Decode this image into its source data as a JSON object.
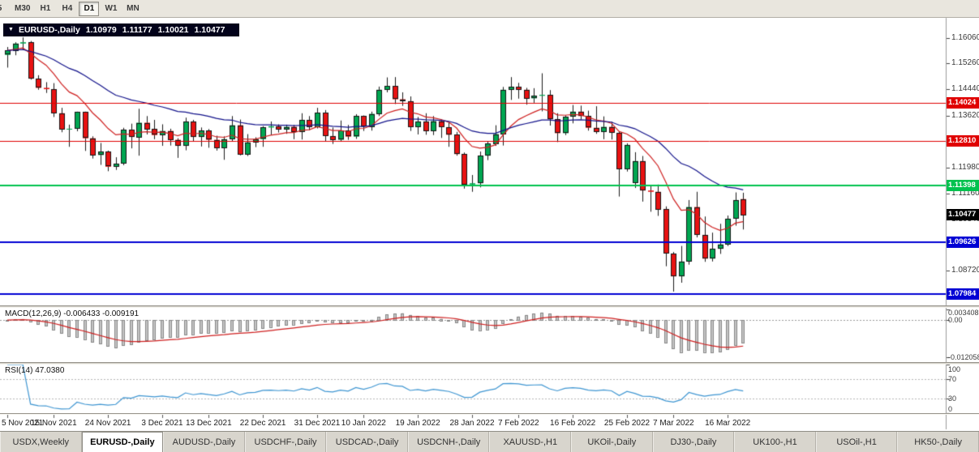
{
  "toolbar": {
    "timeframe_buttons": [
      "5",
      "M30",
      "H1",
      "H4",
      "D1",
      "W1",
      "MN"
    ],
    "active_timeframe": "D1"
  },
  "chart_header": {
    "symbol": "EURUSD-,Daily",
    "open": "1.10979",
    "high": "1.11177",
    "low": "1.10021",
    "close": "1.10477"
  },
  "price_axis": {
    "min": 1.0765,
    "max": 1.1665,
    "ticks": [
      1.1606,
      1.1526,
      1.1444,
      1.1362,
      1.128,
      1.1198,
      1.1116,
      1.1034,
      1.0954,
      1.0872,
      1.079
    ]
  },
  "levels": [
    {
      "price": 1.14024,
      "label": "1.14024",
      "color": "#e00000",
      "width": 1
    },
    {
      "price": 1.1281,
      "label": "1.12810",
      "color": "#e00000",
      "width": 1
    },
    {
      "price": 1.11398,
      "label": "1.11398",
      "color": "#00c24e",
      "width": 2
    },
    {
      "price": 1.09626,
      "label": "1.09626",
      "color": "#0000d4",
      "width": 2
    },
    {
      "price": 1.07984,
      "label": "1.07984",
      "color": "#0000d4",
      "width": 2
    }
  ],
  "current_price": {
    "price": 1.10477,
    "label": "1.10477",
    "badge_color": "#000000"
  },
  "chart_data": {
    "type": "candlestick",
    "title": "EURUSD-,Daily",
    "up_color": "#00a651",
    "down_color": "#e81212",
    "wick_color": "#1a1a1a",
    "ma_fast": {
      "period": 10,
      "color": "#cf2020"
    },
    "ma_slow": {
      "period": 30,
      "color": "#13138b"
    },
    "x_axis_dates": [
      "5 Nov 2021",
      "15 Nov 2021",
      "24 Nov 2021",
      "3 Dec 2021",
      "13 Dec 2021",
      "22 Dec 2021",
      "31 Dec 2021",
      "10 Jan 2022",
      "19 Jan 2022",
      "28 Jan 2022",
      "7 Feb 2022",
      "16 Feb 2022",
      "25 Feb 2022",
      "7 Mar 2022",
      "16 Mar 2022"
    ],
    "x_label_indices": [
      0,
      6,
      13,
      20,
      26,
      33,
      40,
      46,
      53,
      60,
      66,
      73,
      80,
      86,
      93
    ],
    "candles": [
      [
        1.1553,
        1.1578,
        1.1513,
        1.1567
      ],
      [
        1.1567,
        1.1593,
        1.1552,
        1.1589
      ],
      [
        1.1589,
        1.1609,
        1.157,
        1.1593
      ],
      [
        1.1593,
        1.1597,
        1.1475,
        1.1478
      ],
      [
        1.1478,
        1.1489,
        1.1443,
        1.1449
      ],
      [
        1.1449,
        1.1467,
        1.1433,
        1.1445
      ],
      [
        1.1445,
        1.1464,
        1.1357,
        1.1369
      ],
      [
        1.1369,
        1.1386,
        1.1309,
        1.1319
      ],
      [
        1.1319,
        1.1333,
        1.1263,
        1.132
      ],
      [
        1.132,
        1.1374,
        1.1312,
        1.1373
      ],
      [
        1.1373,
        1.1374,
        1.125,
        1.129
      ],
      [
        1.129,
        1.1296,
        1.1226,
        1.1237
      ],
      [
        1.1237,
        1.1275,
        1.1206,
        1.1247
      ],
      [
        1.1247,
        1.1251,
        1.1186,
        1.12
      ],
      [
        1.12,
        1.123,
        1.119,
        1.121
      ],
      [
        1.121,
        1.1323,
        1.1205,
        1.1317
      ],
      [
        1.1317,
        1.1336,
        1.1258,
        1.1294
      ],
      [
        1.1294,
        1.1383,
        1.1235,
        1.1339
      ],
      [
        1.1339,
        1.136,
        1.1302,
        1.1319
      ],
      [
        1.1319,
        1.1348,
        1.1287,
        1.13
      ],
      [
        1.13,
        1.1334,
        1.1266,
        1.1313
      ],
      [
        1.1313,
        1.132,
        1.1267,
        1.1285
      ],
      [
        1.1285,
        1.129,
        1.1228,
        1.1266
      ],
      [
        1.1266,
        1.1355,
        1.1252,
        1.1343
      ],
      [
        1.1343,
        1.1348,
        1.128,
        1.1294
      ],
      [
        1.1294,
        1.1324,
        1.1264,
        1.1314
      ],
      [
        1.1314,
        1.1319,
        1.126,
        1.1285
      ],
      [
        1.1285,
        1.1298,
        1.1251,
        1.126
      ],
      [
        1.126,
        1.1296,
        1.1222,
        1.1287
      ],
      [
        1.1287,
        1.136,
        1.1281,
        1.1331
      ],
      [
        1.1331,
        1.1349,
        1.1236,
        1.1239
      ],
      [
        1.1239,
        1.1303,
        1.1234,
        1.1277
      ],
      [
        1.1277,
        1.1293,
        1.1262,
        1.1287
      ],
      [
        1.1287,
        1.1328,
        1.1263,
        1.1324
      ],
      [
        1.1324,
        1.1343,
        1.13,
        1.1328
      ],
      [
        1.1328,
        1.1334,
        1.1308,
        1.1318
      ],
      [
        1.1318,
        1.1333,
        1.1304,
        1.1326
      ],
      [
        1.1326,
        1.1332,
        1.1287,
        1.131
      ],
      [
        1.131,
        1.1369,
        1.1286,
        1.1348
      ],
      [
        1.1348,
        1.136,
        1.1315,
        1.1325
      ],
      [
        1.1325,
        1.1386,
        1.1321,
        1.137
      ],
      [
        1.137,
        1.1379,
        1.1279,
        1.1297
      ],
      [
        1.1297,
        1.1324,
        1.1272,
        1.1285
      ],
      [
        1.1285,
        1.1346,
        1.128,
        1.1314
      ],
      [
        1.1314,
        1.1332,
        1.1285,
        1.1295
      ],
      [
        1.1295,
        1.1366,
        1.1288,
        1.136
      ],
      [
        1.136,
        1.1362,
        1.1313,
        1.1327
      ],
      [
        1.1327,
        1.1374,
        1.1314,
        1.1367
      ],
      [
        1.1367,
        1.1453,
        1.136,
        1.1443
      ],
      [
        1.1443,
        1.1482,
        1.1435,
        1.1455
      ],
      [
        1.1455,
        1.1483,
        1.1398,
        1.1413
      ],
      [
        1.1413,
        1.1435,
        1.1392,
        1.1407
      ],
      [
        1.1407,
        1.1422,
        1.1313,
        1.1326
      ],
      [
        1.1326,
        1.1357,
        1.1302,
        1.1343
      ],
      [
        1.1343,
        1.1369,
        1.1301,
        1.1313
      ],
      [
        1.1313,
        1.136,
        1.13,
        1.1344
      ],
      [
        1.1344,
        1.1349,
        1.1291,
        1.1325
      ],
      [
        1.1325,
        1.134,
        1.1263,
        1.1301
      ],
      [
        1.1301,
        1.131,
        1.1235,
        1.124
      ],
      [
        1.124,
        1.1245,
        1.1131,
        1.1144
      ],
      [
        1.1144,
        1.1174,
        1.1121,
        1.1148
      ],
      [
        1.1148,
        1.1248,
        1.1135,
        1.1235
      ],
      [
        1.1235,
        1.1279,
        1.1221,
        1.1273
      ],
      [
        1.1273,
        1.1331,
        1.1266,
        1.1303
      ],
      [
        1.1303,
        1.1452,
        1.1267,
        1.1443
      ],
      [
        1.1443,
        1.1483,
        1.1411,
        1.1452
      ],
      [
        1.1452,
        1.1465,
        1.1415,
        1.1443
      ],
      [
        1.1443,
        1.1449,
        1.1396,
        1.1416
      ],
      [
        1.1416,
        1.1448,
        1.1402,
        1.1424
      ],
      [
        1.1424,
        1.1495,
        1.1375,
        1.1427
      ],
      [
        1.1427,
        1.1442,
        1.133,
        1.135
      ],
      [
        1.135,
        1.1369,
        1.1278,
        1.1306
      ],
      [
        1.1306,
        1.1362,
        1.13,
        1.1358
      ],
      [
        1.1358,
        1.1395,
        1.1337,
        1.1374
      ],
      [
        1.1374,
        1.1393,
        1.1349,
        1.136
      ],
      [
        1.136,
        1.1377,
        1.1314,
        1.1323
      ],
      [
        1.1323,
        1.1391,
        1.1304,
        1.131
      ],
      [
        1.131,
        1.1359,
        1.1287,
        1.1326
      ],
      [
        1.1326,
        1.1342,
        1.1286,
        1.1307
      ],
      [
        1.1307,
        1.1311,
        1.1106,
        1.1193
      ],
      [
        1.1193,
        1.1274,
        1.1185,
        1.1269
      ],
      [
        1.115,
        1.1246,
        1.1133,
        1.1218
      ],
      [
        1.1218,
        1.1234,
        1.109,
        1.1125
      ],
      [
        1.1125,
        1.114,
        1.1058,
        1.1121
      ],
      [
        1.1121,
        1.1144,
        1.1045,
        1.1066
      ],
      [
        1.1066,
        1.1075,
        1.0886,
        1.0926
      ],
      [
        1.0926,
        1.0931,
        1.0806,
        1.0854
      ],
      [
        1.0854,
        1.095,
        1.0834,
        1.0901
      ],
      [
        1.0901,
        1.1095,
        1.0891,
        1.1073
      ],
      [
        1.1073,
        1.1121,
        1.0977,
        1.0985
      ],
      [
        1.0985,
        1.1043,
        1.09,
        1.091
      ],
      [
        1.091,
        1.0992,
        1.0901,
        1.0941
      ],
      [
        1.0941,
        1.102,
        1.0925,
        1.0955
      ],
      [
        1.0955,
        1.1046,
        1.095,
        1.1036
      ],
      [
        1.1036,
        1.1119,
        1.1014,
        1.1095
      ],
      [
        1.1098,
        1.1118,
        1.1002,
        1.1048
      ]
    ]
  },
  "macd_panel": {
    "label": "MACD(12,26,9) -0.006433 -0.009191",
    "fast": 12,
    "slow": 26,
    "signal": 9,
    "range": [
      -0.0135,
      0.004
    ],
    "axis_ticks": [
      {
        "label": "0.003408",
        "value": 0.003408
      },
      {
        "label": "0.00",
        "value": 0
      },
      {
        "label": "-0.012058",
        "value": -0.012058
      }
    ],
    "histogram_color": "#c6c6c6",
    "signal_color": "#cf2020"
  },
  "rsi_panel": {
    "label": "RSI(14) 47.0380",
    "period": 14,
    "line_color": "#3f96d2",
    "level_lines": [
      70,
      30
    ],
    "axis_ticks": [
      {
        "label": "100",
        "value": 100
      },
      {
        "label": "70",
        "value": 70
      },
      {
        "label": "30",
        "value": 30
      },
      {
        "label": "0",
        "value": 0
      }
    ]
  },
  "bottom_tabs": {
    "active": "EURUSD-,Daily",
    "tabs": [
      "USDX,Weekly",
      "EURUSD-,Daily",
      "AUDUSD-,Daily",
      "USDCHF-,Daily",
      "USDCAD-,Daily",
      "USDCNH-,Daily",
      "XAUUSD-,H1",
      "UKOil-,Daily",
      "DJ30-,Daily",
      "UK100-,H1",
      "USOil-,H1",
      "HK50-,Daily"
    ]
  }
}
